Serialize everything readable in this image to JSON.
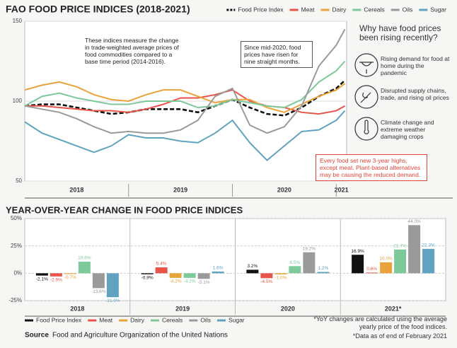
{
  "chart_data": [
    {
      "type": "line",
      "title": "FAO FOOD PRICE INDICES (2018-2021)",
      "x": [
        2018.0,
        2018.167,
        2018.333,
        2018.5,
        2018.667,
        2018.833,
        2019.0,
        2019.167,
        2019.333,
        2019.5,
        2019.667,
        2019.833,
        2020.0,
        2020.167,
        2020.333,
        2020.5,
        2020.667,
        2020.833,
        2021.0,
        2021.083
      ],
      "xlim": [
        2018,
        2021.1
      ],
      "xticks": [
        {
          "value": 2018.5,
          "label": "2018"
        },
        {
          "value": 2019.5,
          "label": "2019"
        },
        {
          "value": 2020.5,
          "label": "2020"
        },
        {
          "value": 2021.05,
          "label": "2021"
        }
      ],
      "ylim": [
        50,
        150
      ],
      "yticks": [
        50,
        100,
        150
      ],
      "grid": true,
      "series": [
        {
          "name": "Food Price Index",
          "color": "#111111",
          "line_style": "dashed",
          "values": [
            97,
            98,
            98,
            96,
            94,
            92,
            93,
            95,
            95,
            95,
            93,
            97,
            101,
            96,
            92,
            91,
            96,
            103,
            108,
            113
          ]
        },
        {
          "name": "Meat",
          "color": "#e8534a",
          "values": [
            97,
            97,
            96,
            95,
            94,
            94,
            93,
            95,
            98,
            102,
            102,
            104,
            107,
            100,
            97,
            96,
            93,
            92,
            94,
            97
          ]
        },
        {
          "name": "Dairy",
          "color": "#e8a33a",
          "values": [
            107,
            110,
            112,
            109,
            104,
            101,
            100,
            104,
            107,
            107,
            103,
            99,
            101,
            101,
            96,
            93,
            98,
            103,
            107,
            111
          ]
        },
        {
          "name": "Cereals",
          "color": "#7dc99a",
          "values": [
            97,
            103,
            105,
            102,
            100,
            98,
            98,
            100,
            100,
            100,
            96,
            97,
            101,
            99,
            97,
            96,
            101,
            112,
            119,
            125
          ]
        },
        {
          "name": "Oils",
          "color": "#9a9a9a",
          "values": [
            97,
            95,
            93,
            89,
            84,
            80,
            81,
            80,
            80,
            82,
            88,
            103,
            108,
            85,
            80,
            84,
            97,
            122,
            135,
            145
          ]
        },
        {
          "name": "Sugar",
          "color": "#5fa3c0",
          "values": [
            87,
            80,
            76,
            72,
            68,
            72,
            79,
            77,
            77,
            75,
            74,
            80,
            88,
            74,
            63,
            72,
            81,
            82,
            88,
            94
          ]
        }
      ],
      "annotations": [
        {
          "text": "These indices measure the change in trade-weighted average prices of food commodities compared to a base time period (2014-2016)."
        },
        {
          "text": "Since mid-2020, food prices have risen for nine straight months."
        },
        {
          "text": "Every food set new 3-year highs, except meat. Plant-based alternatives may be causing the reduced demand."
        }
      ],
      "panel": {
        "title": "Why have food prices been rising recently?",
        "items": [
          "Rising demand for food at home during the pandemic",
          "Disrupted supply chains, trade, and rising oil prices",
          "Climate change and extreme weather damaging crops"
        ]
      }
    },
    {
      "type": "grouped_bar",
      "title": "YEAR-OVER-YEAR CHANGE IN FOOD PRICE INDICES",
      "categories": [
        "2018",
        "2019",
        "2020",
        "2021*"
      ],
      "ylim": [
        -25,
        50
      ],
      "yticks": [
        {
          "value": 50,
          "label": "50%"
        },
        {
          "value": 25,
          "label": "25%"
        },
        {
          "value": 0,
          "label": "0%"
        },
        {
          "value": -25,
          "label": "-25%"
        }
      ],
      "grid": true,
      "series": [
        {
          "name": "Food Price Index",
          "color": "#111111",
          "values": [
            -2.1,
            -0.9,
            3.2,
            16.9
          ],
          "value_labels": [
            "-2.1%",
            "-0.9%",
            "3.2%",
            "16.9%"
          ]
        },
        {
          "name": "Meat",
          "color": "#e8534a",
          "values": [
            -2.9,
            5.4,
            -4.5,
            0.6
          ],
          "value_labels": [
            "-2.9%",
            "5.4%",
            "-4.5%",
            "0.6%"
          ]
        },
        {
          "name": "Dairy",
          "color": "#e8a33a",
          "values": [
            -0.7,
            -4.2,
            -1.0,
            10.0
          ],
          "value_labels": [
            "-0.7%",
            "-4.2%",
            "-1.0%",
            "10.0%"
          ]
        },
        {
          "name": "Cereals",
          "color": "#7dc99a",
          "values": [
            10.6,
            -4.2,
            6.5,
            21.7
          ],
          "value_labels": [
            "10.6%",
            "-4.2%",
            "6.5%",
            "21.7%"
          ]
        },
        {
          "name": "Oils",
          "color": "#9a9a9a",
          "values": [
            -13.6,
            -5.1,
            19.2,
            44.0
          ],
          "value_labels": [
            "-13.6%",
            "-5.1%",
            "19.2%",
            "44.0%"
          ]
        },
        {
          "name": "Sugar",
          "color": "#5fa3c0",
          "values": [
            -21.9,
            1.6,
            1.2,
            22.3
          ],
          "value_labels": [
            "-21.9%",
            "1.6%",
            "1.2%",
            "22.3%"
          ]
        }
      ]
    }
  ],
  "source": {
    "label": "Source",
    "text": "Food and Agriculture Organization of the United Nations"
  },
  "notes": [
    "*YoY changes are calculated using the average yearly price of the food indices.",
    "*Data as of end of February 2021"
  ]
}
